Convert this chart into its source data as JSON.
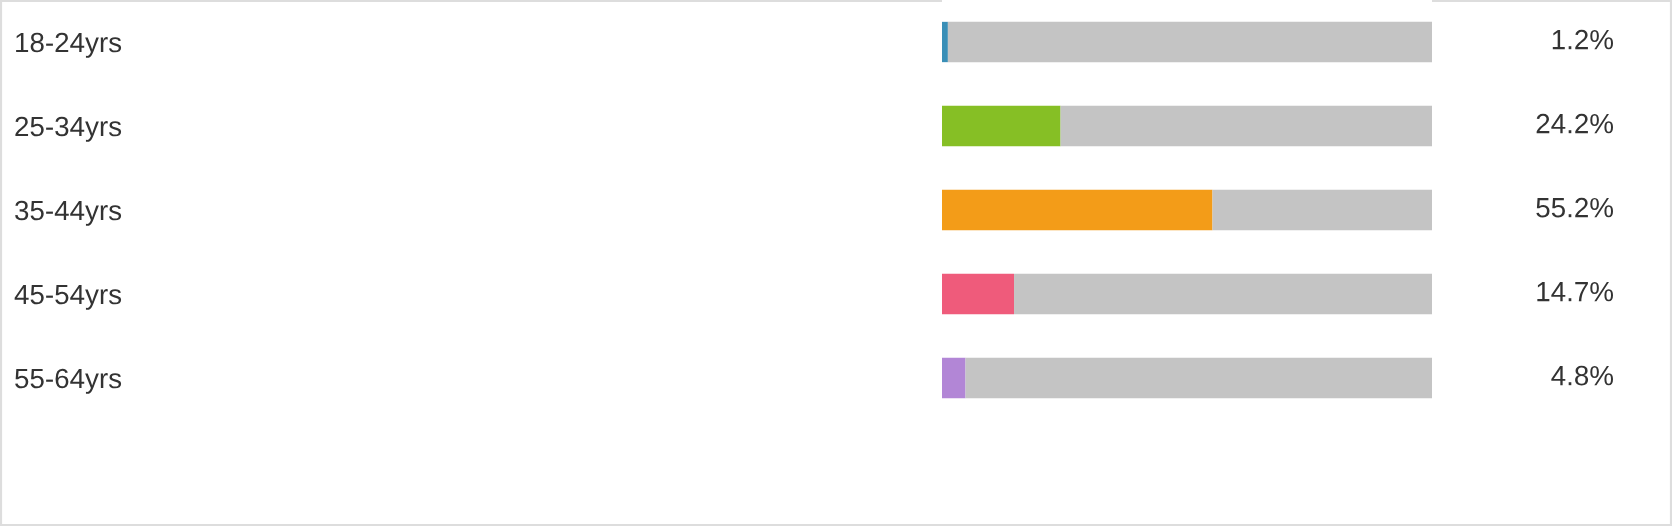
{
  "chart_data": {
    "type": "bar",
    "orientation": "horizontal",
    "stacked": true,
    "categories": [
      "18-24yrs",
      "25-34yrs",
      "35-44yrs",
      "45-54yrs",
      "55-64yrs"
    ],
    "series": [
      {
        "colors": [
          "#3a8fb7",
          "#86bf25",
          "#f39c18",
          "#ef5b7b",
          "#b286d6"
        ],
        "values": [
          1.2,
          24.2,
          55.2,
          14.7,
          4.8
        ],
        "value_labels": [
          "1.2%",
          "24.2%",
          "55.2%",
          "14.7%",
          "4.8%"
        ]
      },
      {
        "color": "#c4c4c4",
        "values": [
          98.8,
          75.8,
          44.8,
          85.3,
          95.2
        ]
      }
    ],
    "xlim": [
      0,
      100
    ],
    "tick_labels": "y",
    "grid": false,
    "legend": false
  }
}
